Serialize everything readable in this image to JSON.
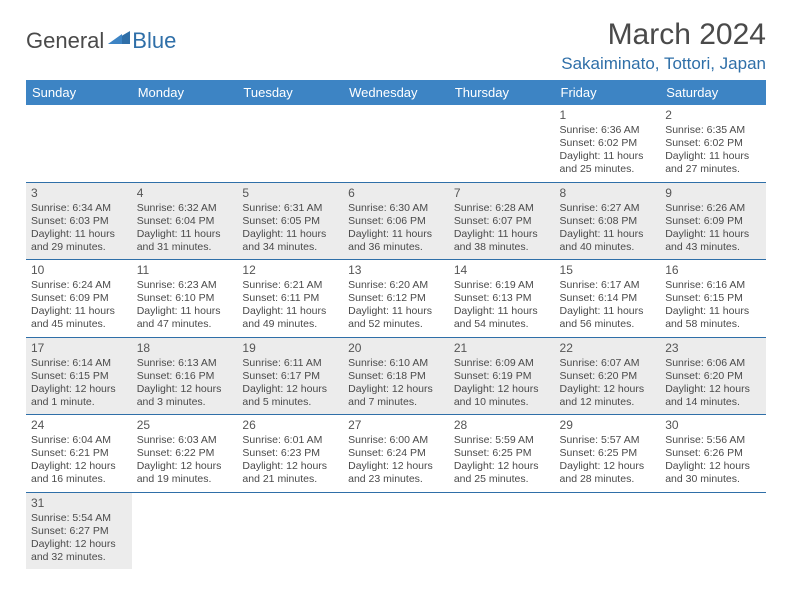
{
  "logo": {
    "text1": "General",
    "text2": "Blue"
  },
  "header": {
    "month_title": "March 2024",
    "location": "Sakaiminato, Tottori, Japan"
  },
  "colors": {
    "header_bg": "#3d84c4",
    "accent": "#2f6fa8",
    "shade": "#ececec",
    "text": "#4a4a4a"
  },
  "day_labels": [
    "Sunday",
    "Monday",
    "Tuesday",
    "Wednesday",
    "Thursday",
    "Friday",
    "Saturday"
  ],
  "weeks": [
    [
      null,
      null,
      null,
      null,
      null,
      {
        "n": "1",
        "sr": "Sunrise: 6:36 AM",
        "ss": "Sunset: 6:02 PM",
        "d1": "Daylight: 11 hours",
        "d2": "and 25 minutes."
      },
      {
        "n": "2",
        "sr": "Sunrise: 6:35 AM",
        "ss": "Sunset: 6:02 PM",
        "d1": "Daylight: 11 hours",
        "d2": "and 27 minutes."
      }
    ],
    [
      {
        "n": "3",
        "sr": "Sunrise: 6:34 AM",
        "ss": "Sunset: 6:03 PM",
        "d1": "Daylight: 11 hours",
        "d2": "and 29 minutes."
      },
      {
        "n": "4",
        "sr": "Sunrise: 6:32 AM",
        "ss": "Sunset: 6:04 PM",
        "d1": "Daylight: 11 hours",
        "d2": "and 31 minutes."
      },
      {
        "n": "5",
        "sr": "Sunrise: 6:31 AM",
        "ss": "Sunset: 6:05 PM",
        "d1": "Daylight: 11 hours",
        "d2": "and 34 minutes."
      },
      {
        "n": "6",
        "sr": "Sunrise: 6:30 AM",
        "ss": "Sunset: 6:06 PM",
        "d1": "Daylight: 11 hours",
        "d2": "and 36 minutes."
      },
      {
        "n": "7",
        "sr": "Sunrise: 6:28 AM",
        "ss": "Sunset: 6:07 PM",
        "d1": "Daylight: 11 hours",
        "d2": "and 38 minutes."
      },
      {
        "n": "8",
        "sr": "Sunrise: 6:27 AM",
        "ss": "Sunset: 6:08 PM",
        "d1": "Daylight: 11 hours",
        "d2": "and 40 minutes."
      },
      {
        "n": "9",
        "sr": "Sunrise: 6:26 AM",
        "ss": "Sunset: 6:09 PM",
        "d1": "Daylight: 11 hours",
        "d2": "and 43 minutes."
      }
    ],
    [
      {
        "n": "10",
        "sr": "Sunrise: 6:24 AM",
        "ss": "Sunset: 6:09 PM",
        "d1": "Daylight: 11 hours",
        "d2": "and 45 minutes."
      },
      {
        "n": "11",
        "sr": "Sunrise: 6:23 AM",
        "ss": "Sunset: 6:10 PM",
        "d1": "Daylight: 11 hours",
        "d2": "and 47 minutes."
      },
      {
        "n": "12",
        "sr": "Sunrise: 6:21 AM",
        "ss": "Sunset: 6:11 PM",
        "d1": "Daylight: 11 hours",
        "d2": "and 49 minutes."
      },
      {
        "n": "13",
        "sr": "Sunrise: 6:20 AM",
        "ss": "Sunset: 6:12 PM",
        "d1": "Daylight: 11 hours",
        "d2": "and 52 minutes."
      },
      {
        "n": "14",
        "sr": "Sunrise: 6:19 AM",
        "ss": "Sunset: 6:13 PM",
        "d1": "Daylight: 11 hours",
        "d2": "and 54 minutes."
      },
      {
        "n": "15",
        "sr": "Sunrise: 6:17 AM",
        "ss": "Sunset: 6:14 PM",
        "d1": "Daylight: 11 hours",
        "d2": "and 56 minutes."
      },
      {
        "n": "16",
        "sr": "Sunrise: 6:16 AM",
        "ss": "Sunset: 6:15 PM",
        "d1": "Daylight: 11 hours",
        "d2": "and 58 minutes."
      }
    ],
    [
      {
        "n": "17",
        "sr": "Sunrise: 6:14 AM",
        "ss": "Sunset: 6:15 PM",
        "d1": "Daylight: 12 hours",
        "d2": "and 1 minute."
      },
      {
        "n": "18",
        "sr": "Sunrise: 6:13 AM",
        "ss": "Sunset: 6:16 PM",
        "d1": "Daylight: 12 hours",
        "d2": "and 3 minutes."
      },
      {
        "n": "19",
        "sr": "Sunrise: 6:11 AM",
        "ss": "Sunset: 6:17 PM",
        "d1": "Daylight: 12 hours",
        "d2": "and 5 minutes."
      },
      {
        "n": "20",
        "sr": "Sunrise: 6:10 AM",
        "ss": "Sunset: 6:18 PM",
        "d1": "Daylight: 12 hours",
        "d2": "and 7 minutes."
      },
      {
        "n": "21",
        "sr": "Sunrise: 6:09 AM",
        "ss": "Sunset: 6:19 PM",
        "d1": "Daylight: 12 hours",
        "d2": "and 10 minutes."
      },
      {
        "n": "22",
        "sr": "Sunrise: 6:07 AM",
        "ss": "Sunset: 6:20 PM",
        "d1": "Daylight: 12 hours",
        "d2": "and 12 minutes."
      },
      {
        "n": "23",
        "sr": "Sunrise: 6:06 AM",
        "ss": "Sunset: 6:20 PM",
        "d1": "Daylight: 12 hours",
        "d2": "and 14 minutes."
      }
    ],
    [
      {
        "n": "24",
        "sr": "Sunrise: 6:04 AM",
        "ss": "Sunset: 6:21 PM",
        "d1": "Daylight: 12 hours",
        "d2": "and 16 minutes."
      },
      {
        "n": "25",
        "sr": "Sunrise: 6:03 AM",
        "ss": "Sunset: 6:22 PM",
        "d1": "Daylight: 12 hours",
        "d2": "and 19 minutes."
      },
      {
        "n": "26",
        "sr": "Sunrise: 6:01 AM",
        "ss": "Sunset: 6:23 PM",
        "d1": "Daylight: 12 hours",
        "d2": "and 21 minutes."
      },
      {
        "n": "27",
        "sr": "Sunrise: 6:00 AM",
        "ss": "Sunset: 6:24 PM",
        "d1": "Daylight: 12 hours",
        "d2": "and 23 minutes."
      },
      {
        "n": "28",
        "sr": "Sunrise: 5:59 AM",
        "ss": "Sunset: 6:25 PM",
        "d1": "Daylight: 12 hours",
        "d2": "and 25 minutes."
      },
      {
        "n": "29",
        "sr": "Sunrise: 5:57 AM",
        "ss": "Sunset: 6:25 PM",
        "d1": "Daylight: 12 hours",
        "d2": "and 28 minutes."
      },
      {
        "n": "30",
        "sr": "Sunrise: 5:56 AM",
        "ss": "Sunset: 6:26 PM",
        "d1": "Daylight: 12 hours",
        "d2": "and 30 minutes."
      }
    ],
    [
      {
        "n": "31",
        "sr": "Sunrise: 5:54 AM",
        "ss": "Sunset: 6:27 PM",
        "d1": "Daylight: 12 hours",
        "d2": "and 32 minutes."
      },
      null,
      null,
      null,
      null,
      null,
      null
    ]
  ]
}
